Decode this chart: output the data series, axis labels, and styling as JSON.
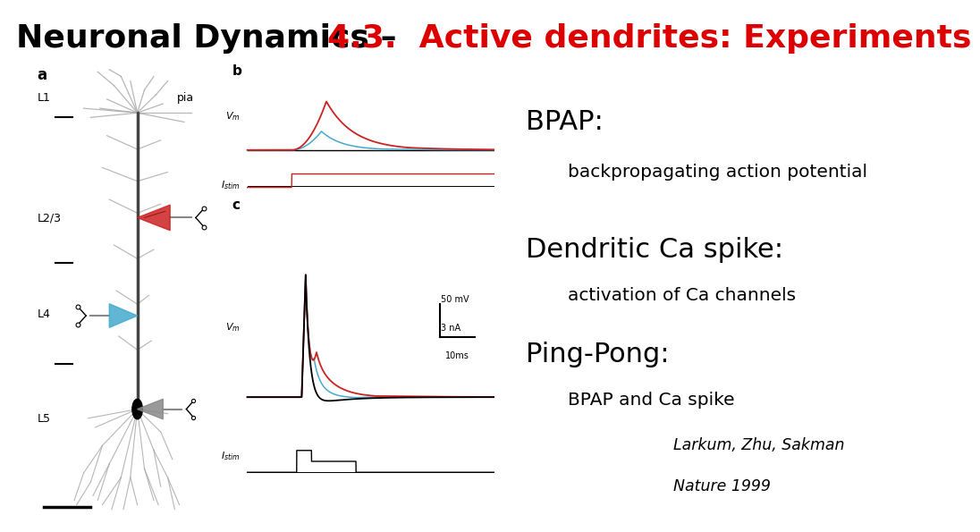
{
  "title_black": "Neuronal Dynamics – ",
  "title_red": "4.3.  Active dendrites: Experiments",
  "title_fontsize": 26,
  "bg_color": "#ffffff",
  "header_bg": "#d0d0d0",
  "bpap_title": "BPAP:",
  "bpap_sub": "backpropagating action potential",
  "ca_title": "Dendritic Ca spike:",
  "ca_sub": "activation of Ca channels",
  "pp_title": "Ping-Pong:",
  "pp_sub": "BPAP and Ca spike",
  "ref_line1": "Larkum, Zhu, Sakman",
  "ref_line2": "Nature 1999",
  "label_a": "a",
  "label_b": "b",
  "label_c": "c",
  "pia_label": "pia",
  "scalebar_label_v": "50 mV",
  "scalebar_label_i": "3 nA",
  "scalebar_label_t": "10ms",
  "red_color": "#cc2222",
  "cyan_color": "#44aacc",
  "dark_gray": "#444444",
  "mid_gray": "#888888",
  "light_gray": "#aaaaaa"
}
